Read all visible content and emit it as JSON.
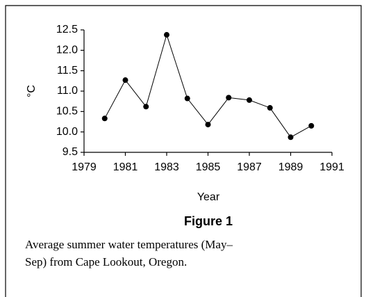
{
  "chart_data": {
    "type": "line",
    "x": [
      1980,
      1981,
      1982,
      1983,
      1984,
      1985,
      1986,
      1987,
      1988,
      1989,
      1990
    ],
    "values": [
      10.33,
      11.27,
      10.62,
      12.38,
      10.82,
      10.18,
      10.84,
      10.78,
      10.59,
      9.87,
      10.15
    ],
    "color": "#000000",
    "xlim": [
      1979,
      1991
    ],
    "xticks": [
      1979,
      1981,
      1983,
      1985,
      1987,
      1989,
      1991
    ],
    "ylim": [
      9.5,
      12.5
    ],
    "yticks": [
      9.5,
      {
        "value": 10,
        "label": "10.0"
      },
      10.5,
      {
        "value": 11,
        "label": "11.0"
      },
      11.5,
      {
        "value": 12,
        "label": "12.0"
      },
      12.5
    ],
    "xlabel": "Year",
    "ylabel": "°C",
    "figure_label": "Figure 1",
    "caption_lines": [
      "Average summer water temperatures (May–",
      "Sep) from Cape Lookout, Oregon."
    ]
  }
}
